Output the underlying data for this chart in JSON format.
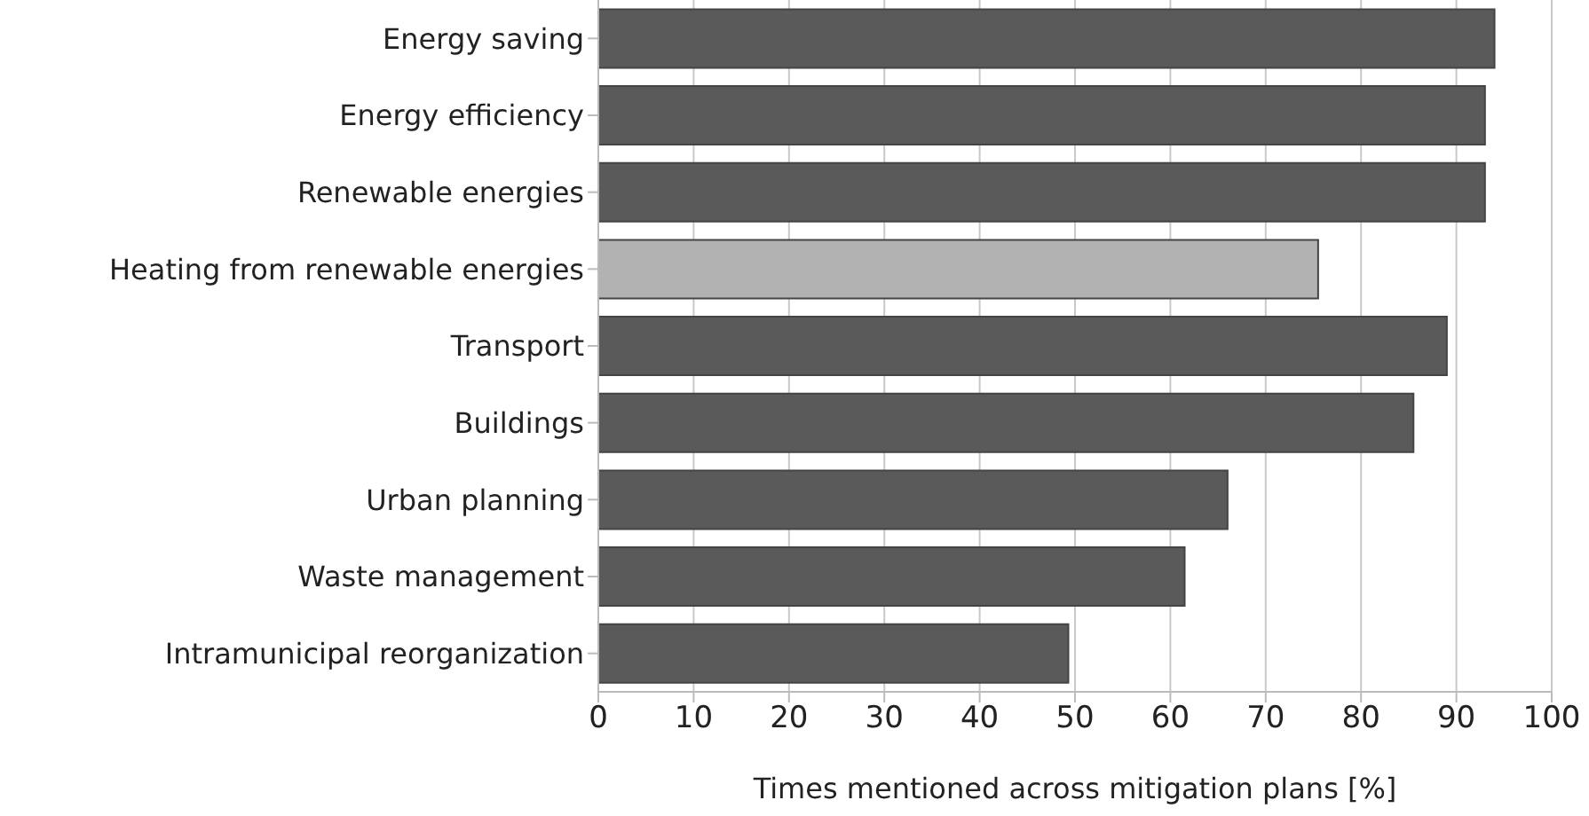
{
  "chart_data": {
    "type": "bar",
    "orientation": "horizontal",
    "xlabel": "Times mentioned across mitigation plans [%]",
    "categories": [
      "Energy saving",
      "Energy efficiency",
      "Renewable energies",
      "Heating from renewable energies",
      "Transport",
      "Buildings",
      "Urban planning",
      "Waste management",
      "Intramunicipal reorganization"
    ],
    "values": [
      94,
      93,
      93,
      75.5,
      89,
      85.5,
      66,
      61.5,
      49.3
    ],
    "colors": [
      "#5a5a5a",
      "#5a5a5a",
      "#5a5a5a",
      "#b2b2b2",
      "#5a5a5a",
      "#5a5a5a",
      "#5a5a5a",
      "#5a5a5a",
      "#5a5a5a"
    ],
    "xlim": [
      0,
      100
    ],
    "xticks": [
      0,
      10,
      20,
      30,
      40,
      50,
      60,
      70,
      80,
      90,
      100
    ],
    "grid": "x"
  }
}
